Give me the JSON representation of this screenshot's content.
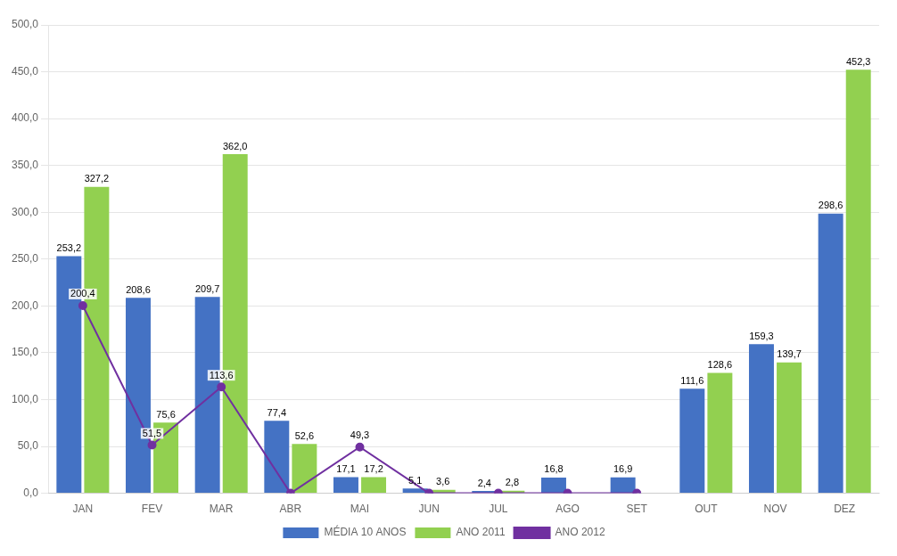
{
  "chart_data": {
    "type": "bar",
    "categories": [
      "JAN",
      "FEV",
      "MAR",
      "ABR",
      "MAI",
      "JUN",
      "JUL",
      "AGO",
      "SET",
      "OUT",
      "NOV",
      "DEZ"
    ],
    "series": [
      {
        "name": "MÉDIA 10 ANOS",
        "type": "bar",
        "color": "#4472C4",
        "values": [
          253.2,
          208.6,
          209.7,
          77.4,
          17.1,
          5.1,
          2.4,
          16.8,
          16.9,
          111.6,
          159.3,
          298.6
        ],
        "value_labels": [
          "253,2",
          "208,6",
          "209,7",
          "77,4",
          "17,1",
          "5,1",
          "2,4",
          "16,8",
          "16,9",
          "111,6",
          "159,3",
          "298,6"
        ]
      },
      {
        "name": "ANO 2011",
        "type": "bar",
        "color": "#92D050",
        "values": [
          327.2,
          75.6,
          362.0,
          52.6,
          17.2,
          3.6,
          2.8,
          0.0,
          0.0,
          128.6,
          139.7,
          452.3
        ],
        "value_labels": [
          "327,2",
          "75,6",
          "362,0",
          "52,6",
          "17,2",
          "3,6",
          "2,8",
          null,
          null,
          "128,6",
          "139,7",
          "452,3"
        ]
      },
      {
        "name": "ANO 2012",
        "type": "line",
        "color": "#7030A0",
        "marker": "circle",
        "line_style": "solid",
        "values": [
          200.4,
          51.5,
          113.6,
          0.0,
          49.3,
          0.0,
          0.0,
          0.0,
          0.0,
          null,
          null,
          null
        ],
        "value_labels": [
          "200,4",
          "51,5",
          "113,6",
          null,
          "49,3",
          null,
          null,
          null,
          null,
          null,
          null,
          null
        ]
      }
    ],
    "ylim": [
      0,
      500
    ],
    "yticks": [
      {
        "value": 0,
        "label": "0,0"
      },
      {
        "value": 50,
        "label": "50,0"
      },
      {
        "value": 100,
        "label": "100,0"
      },
      {
        "value": 150,
        "label": "150,0"
      },
      {
        "value": 200,
        "label": "200,0"
      },
      {
        "value": 250,
        "label": "250,0"
      },
      {
        "value": 300,
        "label": "300,0"
      },
      {
        "value": 350,
        "label": "350,0"
      },
      {
        "value": 400,
        "label": "400,0"
      },
      {
        "value": 450,
        "label": "450,0"
      },
      {
        "value": 500,
        "label": "500,0"
      }
    ],
    "grid": true,
    "legend": "bottom",
    "data_labels": true
  }
}
